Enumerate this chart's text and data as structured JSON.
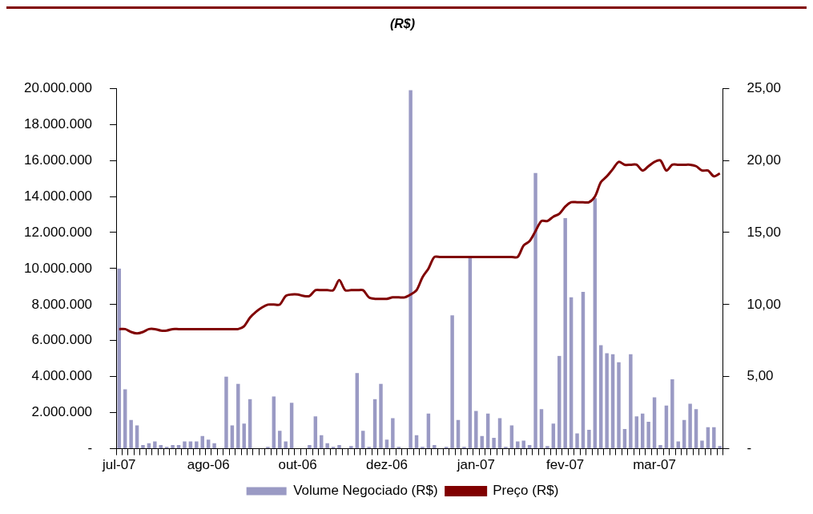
{
  "chart_data": {
    "type": "bar",
    "title": "(R$)",
    "categories": [
      "jul-07",
      null,
      null,
      null,
      null,
      null,
      null,
      null,
      null,
      null,
      null,
      null,
      null,
      null,
      null,
      "ago-06",
      null,
      null,
      null,
      null,
      null,
      null,
      null,
      null,
      null,
      null,
      null,
      null,
      null,
      null,
      "out-06",
      null,
      null,
      null,
      null,
      null,
      null,
      null,
      null,
      null,
      null,
      null,
      null,
      null,
      null,
      "dez-06",
      null,
      null,
      null,
      null,
      null,
      null,
      null,
      null,
      null,
      null,
      null,
      null,
      null,
      null,
      "jan-07",
      null,
      null,
      null,
      null,
      null,
      null,
      null,
      null,
      null,
      null,
      null,
      null,
      null,
      null,
      "fev-07",
      null,
      null,
      null,
      null,
      null,
      null,
      null,
      null,
      null,
      null,
      null,
      null,
      null,
      null,
      "mar-07",
      null,
      null,
      null,
      null,
      null,
      null,
      null,
      null,
      null,
      null,
      null
    ],
    "series": [
      {
        "name": "Volume Negociado (R$)",
        "color": "#9a9ac4",
        "values": [
          10000000,
          3300000,
          1600000,
          1300000,
          200000,
          300000,
          400000,
          200000,
          100000,
          200000,
          200000,
          400000,
          400000,
          400000,
          700000,
          500000,
          300000,
          0,
          4000000,
          1300000,
          3600000,
          1400000,
          2750000,
          0,
          0,
          100000,
          2900000,
          1000000,
          400000,
          2550000,
          0,
          0,
          200000,
          1800000,
          750000,
          300000,
          100000,
          200000,
          0,
          150000,
          4200000,
          1000000,
          100000,
          2750000,
          3600000,
          500000,
          1700000,
          100000,
          0,
          19900000,
          750000,
          100000,
          1950000,
          200000,
          0,
          100000,
          7400000,
          1600000,
          100000,
          10600000,
          2100000,
          700000,
          1950000,
          600000,
          1700000,
          100000,
          1300000,
          400000,
          450000,
          200000,
          15300000,
          2200000,
          150000,
          1400000,
          5150000,
          12800000,
          8400000,
          850000,
          8700000,
          1050000,
          13900000,
          5750000,
          5300000,
          5250000,
          4800000,
          1100000,
          5250000,
          1800000,
          1950000,
          1500000,
          2850000,
          200000,
          2400000,
          3850000,
          400000,
          1600000,
          2500000,
          2200000,
          450000,
          1200000,
          1200000,
          150000
        ]
      },
      {
        "name": "Preço (R$)",
        "type": "line",
        "axis": "y2",
        "color": "#800000",
        "values": [
          8.3,
          8.3,
          8.1,
          8.0,
          8.1,
          8.3,
          8.3,
          8.2,
          8.2,
          8.3,
          8.3,
          8.3,
          8.3,
          8.3,
          8.3,
          8.3,
          8.3,
          8.3,
          8.3,
          8.3,
          8.3,
          8.5,
          9.1,
          9.5,
          9.8,
          10.0,
          10.0,
          10.0,
          10.6,
          10.7,
          10.7,
          10.6,
          10.6,
          11.0,
          11.0,
          11.0,
          11.0,
          11.7,
          11.0,
          11.0,
          11.0,
          11.0,
          10.5,
          10.4,
          10.4,
          10.4,
          10.5,
          10.5,
          10.5,
          10.7,
          11.0,
          11.9,
          12.5,
          13.3,
          13.3,
          13.3,
          13.3,
          13.3,
          13.3,
          13.3,
          13.3,
          13.3,
          13.3,
          13.3,
          13.3,
          13.3,
          13.3,
          13.3,
          14.1,
          14.4,
          15.1,
          15.8,
          15.8,
          16.1,
          16.3,
          16.8,
          17.1,
          17.1,
          17.1,
          17.1,
          17.5,
          18.5,
          18.9,
          19.4,
          19.9,
          19.7,
          19.7,
          19.7,
          19.3,
          19.6,
          19.9,
          20.0,
          19.3,
          19.7,
          19.7,
          19.7,
          19.7,
          19.6,
          19.3,
          19.3,
          18.9,
          19.1
        ]
      }
    ],
    "ylim": [
      0,
      20000000
    ],
    "yticks": [
      {
        "value": 0,
        "label": "-"
      },
      {
        "value": 2000000,
        "label": "2.000.000"
      },
      {
        "value": 4000000,
        "label": "4.000.000"
      },
      {
        "value": 6000000,
        "label": "6.000.000"
      },
      {
        "value": 8000000,
        "label": "8.000.000"
      },
      {
        "value": 10000000,
        "label": "10.000.000"
      },
      {
        "value": 12000000,
        "label": "12.000.000"
      },
      {
        "value": 14000000,
        "label": "14.000.000"
      },
      {
        "value": 16000000,
        "label": "16.000.000"
      },
      {
        "value": 18000000,
        "label": "18.000.000"
      },
      {
        "value": 20000000,
        "label": "20.000.000"
      }
    ],
    "y2lim": [
      0,
      25
    ],
    "y2ticks": [
      {
        "value": 0,
        "label": "-"
      },
      {
        "value": 5,
        "label": "5,00"
      },
      {
        "value": 10,
        "label": "10,00"
      },
      {
        "value": 15,
        "label": "15,00"
      },
      {
        "value": 20,
        "label": "20,00"
      },
      {
        "value": 25,
        "label": "25,00"
      }
    ],
    "legend": "bottom",
    "marker": "none"
  }
}
